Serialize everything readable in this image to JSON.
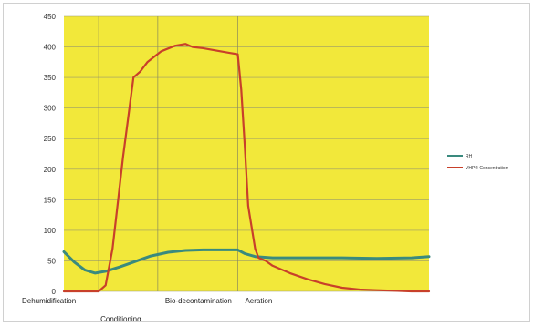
{
  "chart_data": {
    "type": "line",
    "title": "",
    "xlabel": "",
    "ylabel": "",
    "ylim": [
      0,
      450
    ],
    "yticks": [
      0,
      50,
      100,
      150,
      200,
      250,
      300,
      350,
      400,
      450
    ],
    "grid": true,
    "legend_position": "right",
    "plot_color": "#f2e83a",
    "phases": [
      {
        "label": "Dehumidification",
        "start": 0,
        "row": 0
      },
      {
        "label": "Conditioning",
        "start": 10,
        "row": 1
      },
      {
        "label": "Bio-decontamination",
        "start": 27,
        "row": 0
      },
      {
        "label": "Aeration",
        "start": 50,
        "row": 0
      }
    ],
    "phase_boundaries": [
      10,
      27,
      50
    ],
    "x_max": 105,
    "series": [
      {
        "name": "RH",
        "color": "#3a8a7e",
        "x": [
          0,
          3,
          6,
          9,
          12,
          16,
          20,
          25,
          30,
          35,
          40,
          45,
          50,
          52,
          55,
          60,
          70,
          80,
          90,
          100,
          105
        ],
        "values": [
          65,
          48,
          35,
          30,
          33,
          40,
          48,
          58,
          64,
          67,
          68,
          68,
          68,
          62,
          57,
          55,
          55,
          55,
          54,
          55,
          57
        ]
      },
      {
        "name": "VHP® Concentration",
        "color": "#c8402a",
        "x": [
          0,
          10,
          12,
          14,
          17,
          20,
          22,
          24,
          28,
          32,
          35,
          37,
          40,
          45,
          48,
          50,
          51,
          52,
          53,
          55,
          56,
          58,
          60,
          65,
          70,
          75,
          80,
          85,
          90,
          95,
          100,
          105
        ],
        "values": [
          0,
          0,
          10,
          70,
          220,
          350,
          360,
          375,
          393,
          402,
          405,
          400,
          398,
          393,
          390,
          388,
          330,
          240,
          140,
          70,
          55,
          50,
          42,
          30,
          20,
          12,
          6,
          3,
          2,
          1,
          0,
          0
        ]
      }
    ]
  }
}
